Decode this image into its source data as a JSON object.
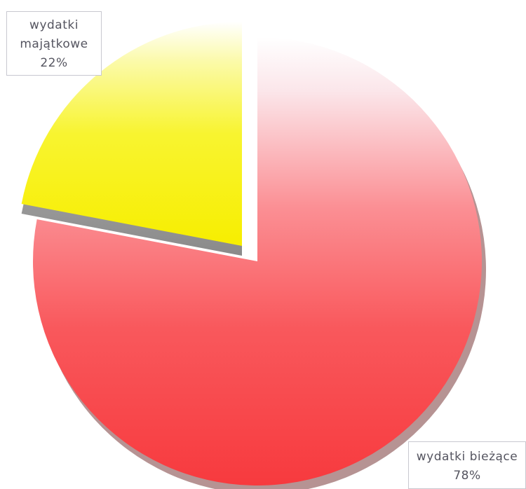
{
  "chart_data": {
    "type": "pie",
    "title": "",
    "slices": [
      {
        "name_lines": [
          "wydatki bieżące"
        ],
        "percent_label": "78%",
        "value": 78,
        "color": "#f83a40"
      },
      {
        "name_lines": [
          "wydatki",
          "majątkowe"
        ],
        "percent_label": "22%",
        "value": 22,
        "color": "#f8f000",
        "exploded": true
      }
    ],
    "legend": "none"
  }
}
